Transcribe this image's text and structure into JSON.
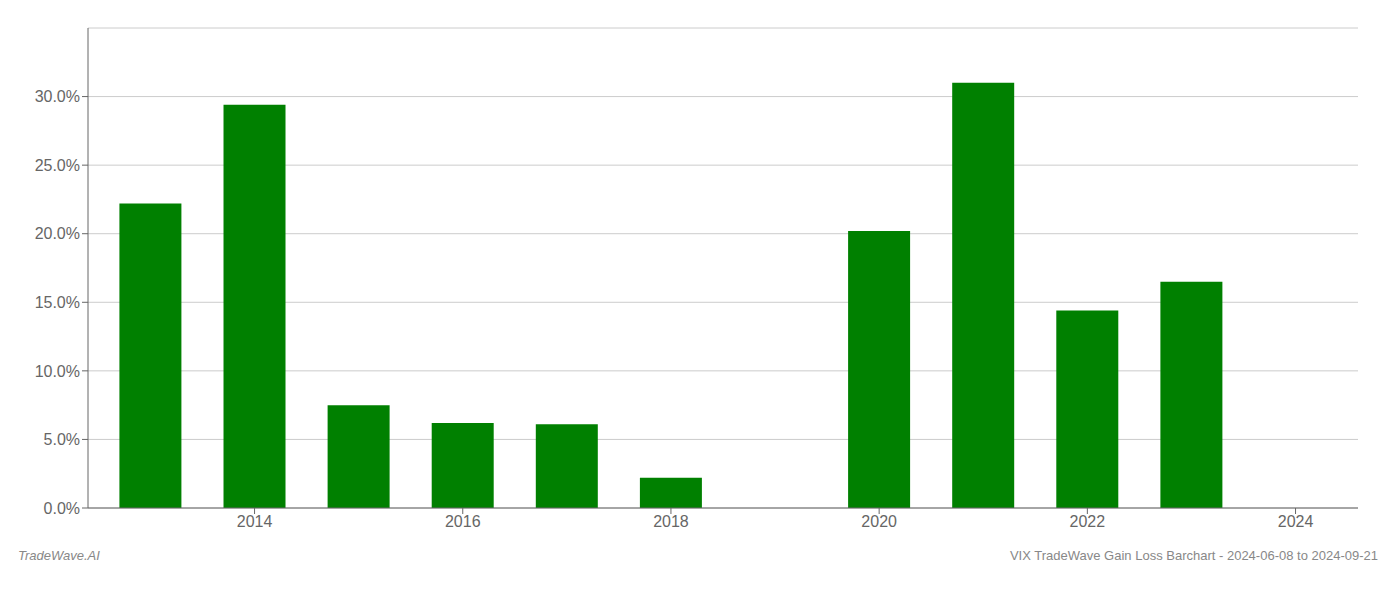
{
  "chart_data": {
    "type": "bar",
    "title": "VIX TradeWave Gain Loss Barchart - 2024-06-08 to 2024-09-21",
    "annotations": [
      "TradeWave.AI"
    ],
    "x": [
      2013,
      2014,
      2015,
      2016,
      2017,
      2018,
      2019,
      2020,
      2021,
      2022,
      2023
    ],
    "values": [
      0.222,
      0.294,
      0.075,
      0.062,
      0.061,
      0.022,
      0.0,
      0.202,
      0.31,
      0.144,
      0.165
    ],
    "color": "#008000",
    "xlim": [
      2012.4,
      2024.6
    ],
    "xticks": [
      2014,
      2016,
      2018,
      2020,
      2022,
      2024
    ],
    "ylim": [
      0.0,
      0.35
    ],
    "yticks": [
      {
        "value": 0.0,
        "label": "0.0%"
      },
      {
        "value": 0.05,
        "label": "5.0%"
      },
      {
        "value": 0.1,
        "label": "10.0%"
      },
      {
        "value": 0.15,
        "label": "15.0%"
      },
      {
        "value": 0.2,
        "label": "20.0%"
      },
      {
        "value": 0.25,
        "label": "25.0%"
      },
      {
        "value": 0.3,
        "label": "30.0%"
      }
    ],
    "grid": true
  }
}
